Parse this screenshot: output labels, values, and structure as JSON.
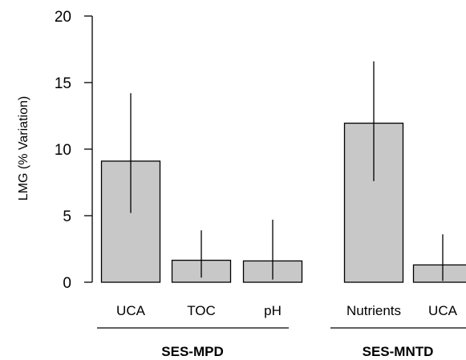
{
  "chart_data": {
    "type": "bar",
    "ylabel": "LMG (% Variation)",
    "ylim": [
      0,
      20
    ],
    "yticks": [
      0,
      5,
      10,
      15,
      20
    ],
    "grid": false,
    "colors": {
      "bar_fill": "#c8c8c8",
      "bar_stroke": "#000000",
      "error_bar": "#000000"
    },
    "groups": [
      {
        "label": "SES-MPD",
        "bars": [
          {
            "category": "UCA",
            "value": 9.1,
            "error_low": 5.2,
            "error_high": 14.2
          },
          {
            "category": "TOC",
            "value": 1.65,
            "error_low": 0.35,
            "error_high": 3.9
          },
          {
            "category": "pH",
            "value": 1.6,
            "error_low": 0.2,
            "error_high": 4.7
          }
        ]
      },
      {
        "label": "SES-MNTD",
        "bars": [
          {
            "category": "Nutrients",
            "value": 11.95,
            "error_low": 7.6,
            "error_high": 16.6
          },
          {
            "category": "UCA",
            "value": 1.3,
            "error_low": 0.1,
            "error_high": 3.6
          }
        ]
      }
    ]
  }
}
